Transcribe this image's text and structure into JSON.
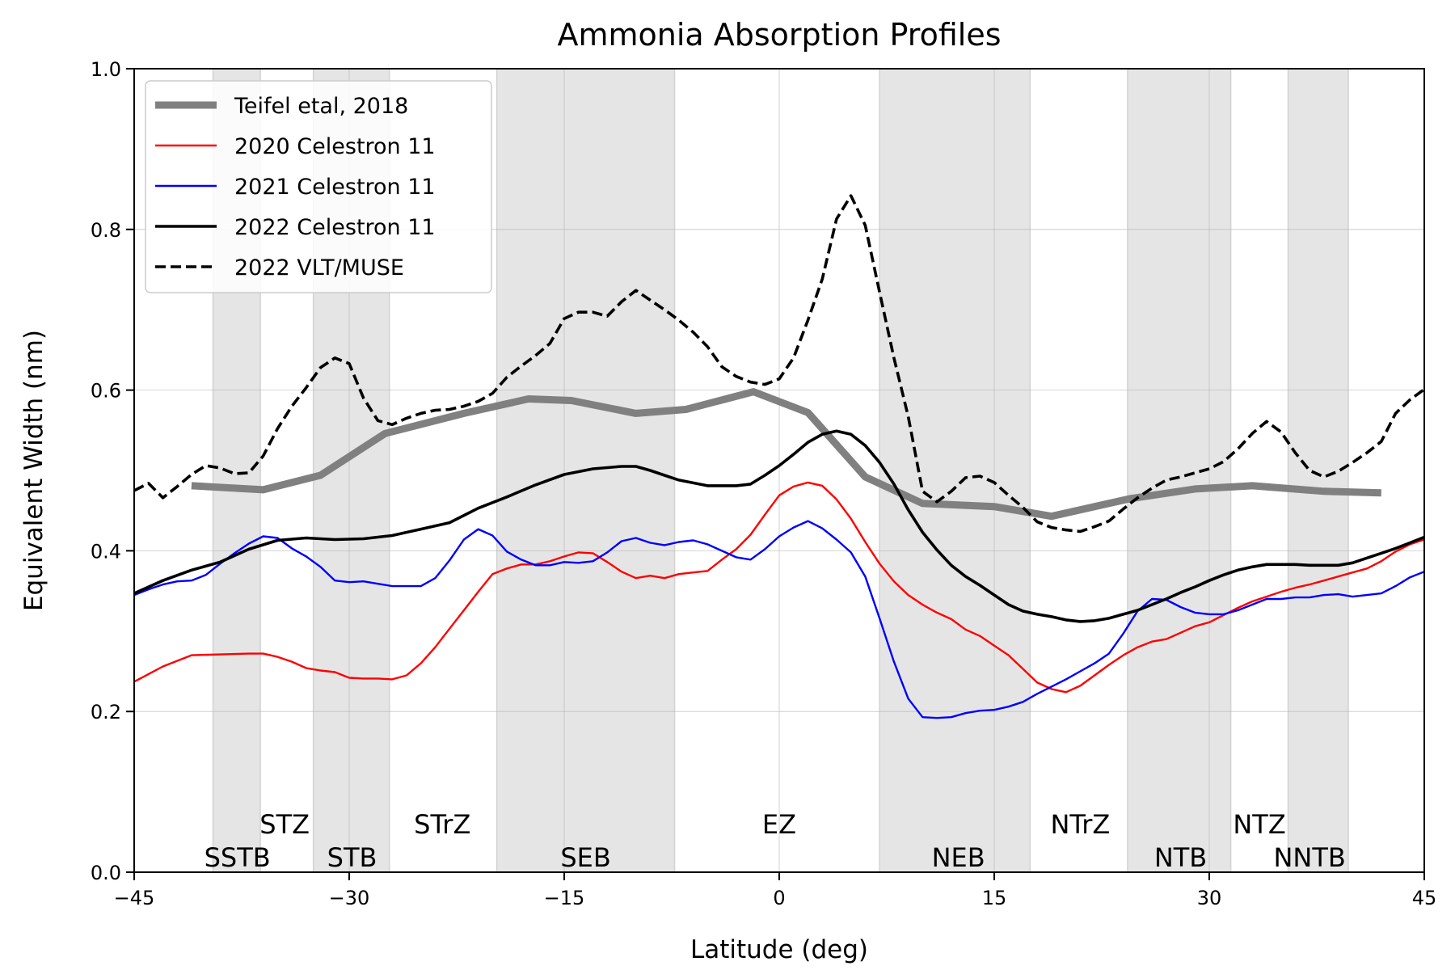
{
  "chart_data": {
    "type": "line",
    "title": "Ammonia Absorption Profiles",
    "xlabel": "Latitude (deg)",
    "ylabel": "Equivalent Width (nm)",
    "xlim": [
      -45,
      45
    ],
    "ylim": [
      0.0,
      1.0
    ],
    "xticks": [
      -45,
      -30,
      -15,
      0,
      15,
      30,
      45
    ],
    "xtick_labels": [
      "−45",
      "−30",
      "−15",
      "0",
      "15",
      "30",
      "45"
    ],
    "yticks": [
      0.0,
      0.2,
      0.4,
      0.6,
      0.8,
      1.0
    ],
    "ytick_labels": [
      "0.0",
      "0.2",
      "0.4",
      "0.6",
      "0.8",
      "1.0"
    ],
    "grid": true,
    "legend_position": "top-left",
    "belts": [
      {
        "x0": -39.5,
        "x1": -36.2
      },
      {
        "x0": -32.5,
        "x1": -27.2
      },
      {
        "x0": -19.7,
        "x1": -7.3
      },
      {
        "x0": 7.0,
        "x1": 17.5
      },
      {
        "x0": 24.3,
        "x1": 31.5
      },
      {
        "x0": 35.5,
        "x1": 39.7
      }
    ],
    "zone_labels": [
      {
        "text": "STZ",
        "x": -34.5,
        "row": 1
      },
      {
        "text": "SSTB",
        "x": -37.8,
        "row": 2
      },
      {
        "text": "STB",
        "x": -29.8,
        "row": 2
      },
      {
        "text": "STrZ",
        "x": -23.5,
        "row": 1
      },
      {
        "text": "SEB",
        "x": -13.5,
        "row": 2
      },
      {
        "text": "EZ",
        "x": 0,
        "row": 1
      },
      {
        "text": "NEB",
        "x": 12.5,
        "row": 2
      },
      {
        "text": "NTrZ",
        "x": 21.0,
        "row": 1
      },
      {
        "text": "NTB",
        "x": 28.0,
        "row": 2
      },
      {
        "text": "NTZ",
        "x": 33.5,
        "row": 1
      },
      {
        "text": "NNTB",
        "x": 37.0,
        "row": 2
      }
    ],
    "series": [
      {
        "name": "Teifel etal, 2018",
        "color": "#808080",
        "style": "solid",
        "weight": "thick",
        "x": [
          -41,
          -36,
          -32,
          -27.5,
          -22,
          -17.5,
          -14.5,
          -10,
          -6.5,
          -1.8,
          2,
          6,
          10,
          15,
          19,
          24.5,
          29,
          33,
          38,
          42
        ],
        "y": [
          0.481,
          0.476,
          0.494,
          0.546,
          0.571,
          0.589,
          0.587,
          0.571,
          0.576,
          0.598,
          0.572,
          0.492,
          0.459,
          0.455,
          0.443,
          0.465,
          0.477,
          0.481,
          0.474,
          0.472
        ]
      },
      {
        "name": "2020 Celestron 11",
        "color": "#ff0000",
        "style": "solid",
        "weight": "thin",
        "x": [
          -45,
          -43,
          -41,
          -39,
          -37,
          -36,
          -35,
          -34,
          -33,
          -32,
          -31,
          -30,
          -29,
          -28,
          -27,
          -26,
          -25,
          -24,
          -23,
          -22,
          -21,
          -20,
          -19,
          -18,
          -17,
          -16,
          -15,
          -14,
          -13,
          -12,
          -11,
          -10,
          -9,
          -8,
          -7,
          -6,
          -5,
          -4,
          -3,
          -2,
          -1,
          0,
          1,
          2,
          3,
          4,
          5,
          6,
          7,
          8,
          9,
          10,
          11,
          12,
          13,
          14,
          15,
          16,
          17,
          18,
          19,
          20,
          21,
          22,
          23,
          24,
          25,
          26,
          27,
          28,
          29,
          30,
          31,
          32,
          33,
          34,
          35,
          36,
          37,
          38,
          39,
          40,
          41,
          42,
          43,
          44,
          45
        ],
        "y": [
          0.237,
          0.256,
          0.27,
          0.271,
          0.272,
          0.272,
          0.268,
          0.262,
          0.254,
          0.251,
          0.249,
          0.242,
          0.241,
          0.241,
          0.24,
          0.245,
          0.26,
          0.28,
          0.303,
          0.326,
          0.349,
          0.371,
          0.378,
          0.383,
          0.383,
          0.387,
          0.393,
          0.398,
          0.397,
          0.386,
          0.374,
          0.366,
          0.369,
          0.366,
          0.371,
          0.373,
          0.375,
          0.389,
          0.402,
          0.42,
          0.445,
          0.469,
          0.48,
          0.485,
          0.481,
          0.464,
          0.44,
          0.411,
          0.384,
          0.362,
          0.345,
          0.333,
          0.323,
          0.315,
          0.302,
          0.294,
          0.282,
          0.27,
          0.253,
          0.236,
          0.228,
          0.224,
          0.232,
          0.245,
          0.258,
          0.27,
          0.28,
          0.287,
          0.29,
          0.298,
          0.306,
          0.311,
          0.32,
          0.329,
          0.337,
          0.343,
          0.349,
          0.354,
          0.358,
          0.363,
          0.368,
          0.373,
          0.378,
          0.387,
          0.399,
          0.408,
          0.414
        ]
      },
      {
        "name": "2021 Celestron 11",
        "color": "#0000ff",
        "style": "solid",
        "weight": "thin",
        "x": [
          -45,
          -44,
          -43,
          -42,
          -41,
          -40,
          -39,
          -38,
          -37,
          -36,
          -35,
          -34,
          -33,
          -32,
          -31,
          -30,
          -29,
          -28,
          -27,
          -26,
          -25,
          -24,
          -23,
          -22,
          -21,
          -20,
          -19,
          -18,
          -17,
          -16,
          -15,
          -14,
          -13,
          -12,
          -11,
          -10,
          -9,
          -8,
          -7,
          -6,
          -5,
          -4,
          -3,
          -2,
          -1,
          0,
          1,
          2,
          3,
          4,
          5,
          6,
          7,
          8,
          9,
          10,
          11,
          12,
          13,
          14,
          15,
          16,
          17,
          18,
          19,
          20,
          21,
          22,
          23,
          24,
          25,
          26,
          27,
          28,
          29,
          30,
          31,
          32,
          33,
          34,
          35,
          36,
          37,
          38,
          39,
          40,
          41,
          42,
          43,
          44,
          45
        ],
        "y": [
          0.345,
          0.352,
          0.358,
          0.362,
          0.363,
          0.37,
          0.384,
          0.397,
          0.409,
          0.418,
          0.416,
          0.403,
          0.393,
          0.38,
          0.363,
          0.361,
          0.362,
          0.359,
          0.356,
          0.356,
          0.356,
          0.366,
          0.388,
          0.414,
          0.427,
          0.419,
          0.399,
          0.389,
          0.382,
          0.382,
          0.386,
          0.385,
          0.387,
          0.398,
          0.412,
          0.416,
          0.41,
          0.407,
          0.411,
          0.413,
          0.408,
          0.4,
          0.392,
          0.389,
          0.402,
          0.418,
          0.429,
          0.437,
          0.428,
          0.414,
          0.398,
          0.368,
          0.316,
          0.262,
          0.216,
          0.193,
          0.192,
          0.193,
          0.198,
          0.201,
          0.202,
          0.206,
          0.212,
          0.222,
          0.231,
          0.24,
          0.25,
          0.26,
          0.272,
          0.297,
          0.325,
          0.34,
          0.339,
          0.33,
          0.323,
          0.321,
          0.321,
          0.326,
          0.333,
          0.34,
          0.34,
          0.342,
          0.342,
          0.345,
          0.346,
          0.343,
          0.345,
          0.347,
          0.356,
          0.367,
          0.374
        ]
      },
      {
        "name": "2022 Celestron 11",
        "color": "#000000",
        "style": "solid",
        "weight": "medium",
        "x": [
          -45,
          -43,
          -41,
          -39,
          -37,
          -35,
          -33,
          -31,
          -29,
          -27,
          -25,
          -23,
          -21,
          -19,
          -17,
          -15,
          -13,
          -11,
          -10,
          -9,
          -8,
          -7,
          -5,
          -3,
          -2,
          -1,
          0,
          1,
          2,
          3,
          4,
          5,
          6,
          7,
          8,
          9,
          10,
          11,
          12,
          13,
          14,
          15,
          16,
          17,
          18,
          19,
          20,
          21,
          22,
          23,
          24,
          25,
          26,
          27,
          28,
          29,
          30,
          31,
          32,
          33,
          34,
          35,
          36,
          37,
          38,
          39,
          40,
          41,
          42,
          43,
          44,
          45
        ],
        "y": [
          0.347,
          0.363,
          0.376,
          0.386,
          0.402,
          0.413,
          0.416,
          0.414,
          0.415,
          0.419,
          0.427,
          0.435,
          0.453,
          0.467,
          0.482,
          0.495,
          0.502,
          0.505,
          0.505,
          0.5,
          0.494,
          0.488,
          0.481,
          0.481,
          0.483,
          0.494,
          0.506,
          0.52,
          0.535,
          0.545,
          0.549,
          0.545,
          0.531,
          0.51,
          0.483,
          0.451,
          0.423,
          0.401,
          0.382,
          0.368,
          0.357,
          0.345,
          0.333,
          0.325,
          0.321,
          0.318,
          0.314,
          0.312,
          0.313,
          0.316,
          0.321,
          0.326,
          0.333,
          0.34,
          0.348,
          0.355,
          0.363,
          0.37,
          0.376,
          0.38,
          0.383,
          0.383,
          0.383,
          0.382,
          0.382,
          0.382,
          0.385,
          0.391,
          0.397,
          0.403,
          0.41,
          0.417
        ]
      },
      {
        "name": "2022 VLT/MUSE",
        "color": "#000000",
        "style": "dashed",
        "weight": "medium",
        "x": [
          -45,
          -44,
          -43,
          -42,
          -41,
          -40,
          -39,
          -38,
          -37,
          -36,
          -35,
          -34,
          -33,
          -32,
          -31,
          -30,
          -29,
          -28,
          -27,
          -26,
          -25,
          -24,
          -23,
          -22,
          -21,
          -20,
          -19,
          -18,
          -17,
          -16,
          -15,
          -14,
          -13,
          -12,
          -11,
          -10,
          -9,
          -8,
          -7,
          -6,
          -5,
          -4,
          -3,
          -2,
          -1,
          0,
          1,
          2,
          3,
          4,
          5,
          6,
          7,
          8,
          9,
          10,
          11,
          12,
          13,
          14,
          15,
          16,
          17,
          18,
          19,
          20,
          21,
          22,
          23,
          24,
          25,
          26,
          27,
          28,
          29,
          30,
          31,
          32,
          33,
          34,
          35,
          36,
          37,
          38,
          39,
          40,
          41,
          42,
          43,
          44,
          45
        ],
        "y": [
          0.475,
          0.484,
          0.466,
          0.48,
          0.495,
          0.506,
          0.503,
          0.496,
          0.497,
          0.518,
          0.552,
          0.58,
          0.603,
          0.628,
          0.64,
          0.633,
          0.59,
          0.562,
          0.557,
          0.565,
          0.571,
          0.575,
          0.576,
          0.58,
          0.586,
          0.596,
          0.616,
          0.63,
          0.643,
          0.658,
          0.689,
          0.697,
          0.697,
          0.692,
          0.71,
          0.724,
          0.712,
          0.7,
          0.687,
          0.672,
          0.654,
          0.629,
          0.617,
          0.61,
          0.607,
          0.614,
          0.64,
          0.687,
          0.738,
          0.813,
          0.842,
          0.805,
          0.722,
          0.64,
          0.567,
          0.474,
          0.461,
          0.474,
          0.491,
          0.493,
          0.485,
          0.469,
          0.454,
          0.436,
          0.429,
          0.426,
          0.424,
          0.43,
          0.437,
          0.452,
          0.466,
          0.478,
          0.488,
          0.492,
          0.497,
          0.502,
          0.511,
          0.527,
          0.546,
          0.561,
          0.548,
          0.522,
          0.5,
          0.492,
          0.499,
          0.51,
          0.522,
          0.536,
          0.571,
          0.588,
          0.601
        ]
      }
    ]
  }
}
